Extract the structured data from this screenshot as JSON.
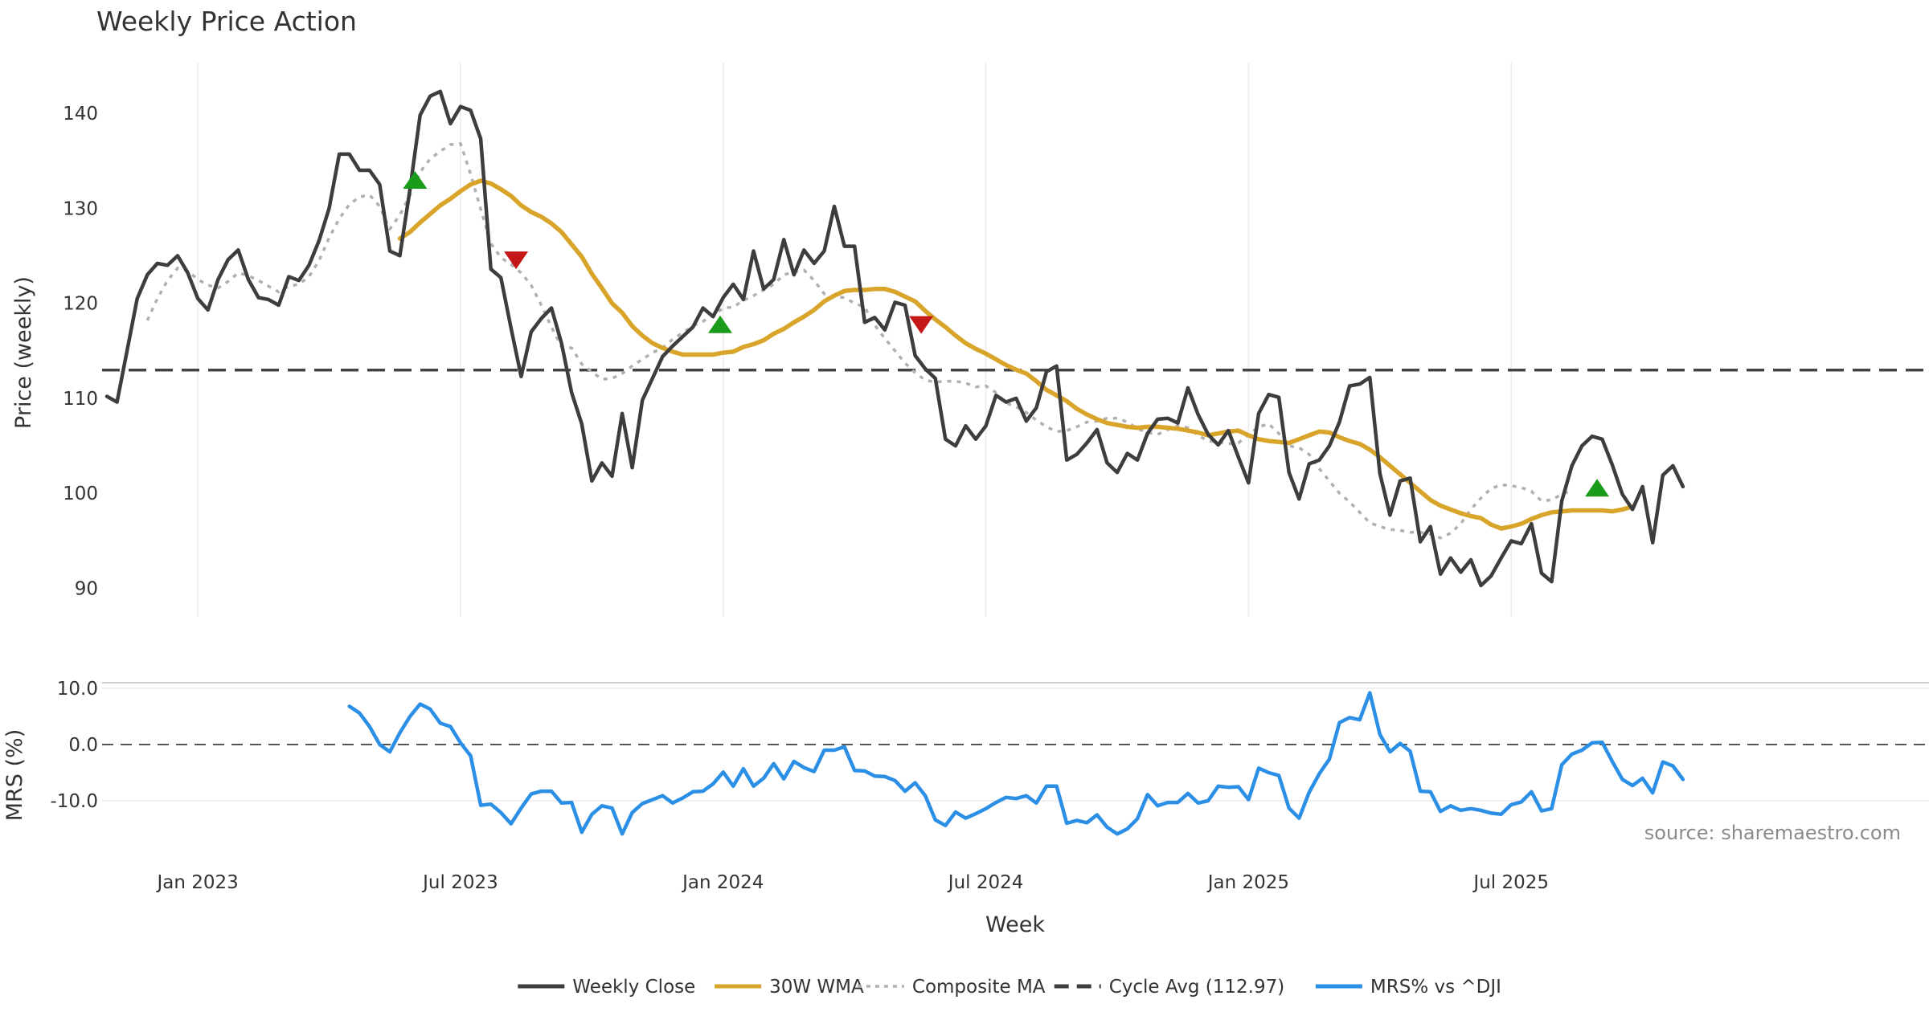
{
  "chart_data": {
    "type": "line",
    "title": "Weekly Price Action",
    "xlabel": "Week",
    "source": "source: sharemaestro.com",
    "x_ticks": [
      "Jan 2023",
      "Jul 2023",
      "Jan 2024",
      "Jul 2024",
      "Jan 2025",
      "Jul 2025"
    ],
    "x_tick_weeks": [
      9,
      35,
      61,
      87,
      113,
      139
    ],
    "price_panel": {
      "ylabel": "Price (weekly)",
      "ylim": [
        87,
        146
      ],
      "y_ticks": [
        90,
        100,
        110,
        120,
        130,
        140
      ],
      "y_tick_labels": [
        "90",
        "100",
        "110",
        "120",
        "130",
        "140"
      ],
      "cycle_avg": 112.97,
      "series": [
        {
          "name": "Weekly Close",
          "color": "#3d3d3d",
          "start_week": 0,
          "values": [
            110.2,
            109.6,
            115.0,
            120.5,
            123.0,
            124.2,
            124.0,
            125.0,
            123.2,
            120.5,
            119.3,
            122.5,
            124.6,
            125.6,
            122.5,
            120.6,
            120.4,
            119.8,
            122.8,
            122.4,
            124.0,
            126.6,
            130.0,
            135.7,
            135.7,
            134.0,
            134.0,
            132.5,
            125.5,
            125.0,
            132.0,
            139.8,
            141.8,
            142.3,
            138.9,
            140.7,
            140.3,
            137.3,
            123.6,
            122.7,
            117.4,
            112.3,
            117.0,
            118.4,
            119.5,
            115.8,
            110.6,
            107.3,
            101.3,
            103.2,
            101.8,
            108.4,
            102.7,
            109.8,
            112.1,
            114.4,
            115.5,
            116.5,
            117.5,
            119.5,
            118.6,
            120.6,
            122.0,
            120.4,
            125.5,
            121.5,
            122.5,
            126.7,
            123.0,
            125.6,
            124.2,
            125.5,
            130.2,
            126.0,
            126.0,
            118.0,
            118.5,
            117.2,
            120.1,
            119.8,
            114.5,
            113.1,
            112.1,
            105.7,
            105.0,
            107.1,
            105.7,
            107.1,
            110.3,
            109.6,
            110.0,
            107.6,
            109.0,
            112.8,
            113.4,
            103.5,
            104.1,
            105.3,
            106.7,
            103.2,
            102.2,
            104.2,
            103.5,
            106.3,
            107.8,
            107.9,
            107.4,
            111.1,
            108.3,
            106.2,
            105.1,
            106.6,
            103.8,
            101.1,
            108.4,
            110.4,
            110.1,
            102.2,
            99.4,
            103.1,
            103.5,
            105.0,
            107.5,
            111.3,
            111.5,
            112.2,
            102.1,
            97.7,
            101.3,
            101.6,
            94.9,
            96.5,
            91.5,
            93.2,
            91.7,
            93.0,
            90.3,
            91.3,
            93.2,
            95.0,
            94.7,
            96.8,
            91.6,
            90.7,
            99.2,
            102.9,
            105.0,
            106.0,
            105.7,
            103.0,
            99.9,
            98.3,
            100.7,
            94.8,
            101.9,
            102.9,
            100.7
          ]
        },
        {
          "name": "30W WMA",
          "color": "#d9a42a",
          "start_week": 29,
          "values": [
            126.8,
            127.5,
            128.5,
            129.4,
            130.3,
            131.0,
            131.8,
            132.5,
            132.9,
            132.6,
            132.0,
            131.3,
            130.3,
            129.6,
            129.1,
            128.4,
            127.5,
            126.2,
            124.9,
            123.1,
            121.6,
            120.0,
            119.0,
            117.6,
            116.6,
            115.8,
            115.3,
            114.9,
            114.6,
            114.6,
            114.6,
            114.6,
            114.8,
            114.9,
            115.4,
            115.7,
            116.1,
            116.8,
            117.3,
            118.0,
            118.6,
            119.3,
            120.2,
            120.8,
            121.3,
            121.4,
            121.4,
            121.5,
            121.5,
            121.2,
            120.7,
            120.2,
            119.2,
            118.3,
            117.5,
            116.6,
            115.8,
            115.2,
            114.7,
            114.1,
            113.5,
            113.0,
            112.6,
            111.8,
            110.9,
            110.3,
            109.7,
            108.9,
            108.3,
            107.8,
            107.4,
            107.2,
            107.0,
            106.9,
            107.0,
            107.0,
            106.9,
            106.8,
            106.6,
            106.4,
            106.1,
            106.3,
            106.5,
            106.6,
            106.1,
            105.7,
            105.5,
            105.4,
            105.3,
            105.7,
            106.1,
            106.5,
            106.4,
            105.9,
            105.5,
            105.2,
            104.6,
            103.8,
            102.9,
            102.0,
            101.1,
            100.2,
            99.3,
            98.7,
            98.3,
            97.9,
            97.6,
            97.4,
            96.7,
            96.3,
            96.5,
            96.8,
            97.3,
            97.7,
            98.0,
            98.1,
            98.2,
            98.2,
            98.2,
            98.2,
            98.1,
            98.3,
            98.6
          ]
        },
        {
          "name": "Composite MA",
          "color": "#b0b0b0",
          "start_week": 4,
          "values": [
            118.2,
            120.5,
            122.4,
            123.7,
            123.4,
            122.5,
            121.9,
            121.6,
            122.3,
            123.2,
            122.9,
            122.4,
            121.8,
            121.2,
            121.8,
            122.0,
            122.8,
            124.5,
            126.9,
            128.9,
            130.4,
            131.2,
            131.4,
            130.2,
            127.8,
            129.3,
            131.4,
            133.8,
            135.2,
            136.0,
            136.7,
            136.8,
            133.6,
            129.9,
            126.3,
            124.8,
            124.1,
            123.2,
            121.9,
            119.8,
            117.5,
            115.4,
            115.3,
            113.6,
            112.8,
            112.0,
            112.1,
            112.6,
            113.4,
            114.1,
            114.8,
            115.3,
            116.2,
            116.9,
            117.6,
            118.1,
            118.7,
            119.5,
            119.6,
            120.3,
            120.8,
            121.4,
            122.0,
            123.0,
            123.3,
            123.5,
            122.4,
            121.0,
            120.7,
            120.6,
            120.0,
            119.6,
            117.7,
            116.3,
            115.0,
            113.7,
            112.7,
            111.9,
            111.7,
            111.8,
            111.8,
            111.6,
            111.2,
            111.3,
            110.6,
            109.5,
            109.1,
            108.5,
            107.7,
            107.0,
            106.5,
            106.6,
            107.0,
            107.5,
            107.6,
            107.9,
            107.9,
            107.5,
            106.8,
            106.4,
            106.2,
            106.7,
            107.1,
            106.9,
            106.1,
            105.5,
            105.4,
            105.2,
            105.3,
            106.2,
            107.0,
            107.3,
            106.3,
            105.0,
            104.8,
            104.1,
            102.6,
            101.3,
            100.0,
            99.1,
            98.0,
            96.9,
            96.5,
            96.2,
            96.1,
            95.9,
            95.9,
            95.7,
            95.3,
            95.8,
            96.8,
            98.3,
            99.5,
            100.5,
            100.9,
            100.8,
            100.6,
            100.2,
            99.2,
            99.3,
            99.9,
            100.3
          ]
        }
      ],
      "buy_signals": [
        {
          "week": 30.5,
          "price": 132.9
        },
        {
          "week": 60.7,
          "price": 117.7
        },
        {
          "week": 147.5,
          "price": 100.5
        }
      ],
      "sell_signals": [
        {
          "week": 40.5,
          "price": 124.6
        },
        {
          "week": 80.6,
          "price": 117.8
        }
      ],
      "buy_color": "#1a9c1a",
      "sell_color": "#c41818"
    },
    "mrs_panel": {
      "ylabel": "MRS (%)",
      "ylim": [
        -19,
        11
      ],
      "y_ticks": [
        -10,
        0,
        10
      ],
      "y_tick_labels": [
        "-10.0",
        "0.0",
        "10.0"
      ],
      "series": [
        {
          "name": "MRS% vs ^DJI",
          "color": "#2b8fe6",
          "start_week": 24,
          "values": [
            6.8,
            5.6,
            3.2,
            0.0,
            -1.3,
            2.1,
            5.0,
            7.2,
            6.3,
            3.8,
            3.2,
            0.3,
            -2.0,
            -10.8,
            -10.6,
            -12.1,
            -14.1,
            -11.3,
            -8.8,
            -8.3,
            -8.3,
            -10.4,
            -10.3,
            -15.6,
            -12.4,
            -10.9,
            -11.3,
            -15.9,
            -12.1,
            -10.5,
            -9.8,
            -9.1,
            -10.4,
            -9.5,
            -8.4,
            -8.3,
            -7.0,
            -4.9,
            -7.4,
            -4.3,
            -7.4,
            -6.0,
            -3.4,
            -6.1,
            -3.0,
            -4.1,
            -4.8,
            -1.0,
            -1.0,
            -0.4,
            -4.6,
            -4.7,
            -5.6,
            -5.7,
            -6.4,
            -8.3,
            -6.8,
            -9.1,
            -13.4,
            -14.4,
            -12.0,
            -13.1,
            -12.3,
            -11.4,
            -10.3,
            -9.4,
            -9.6,
            -9.1,
            -10.4,
            -7.4,
            -7.4,
            -14.0,
            -13.5,
            -13.9,
            -12.5,
            -14.7,
            -15.9,
            -15.0,
            -13.2,
            -8.9,
            -10.9,
            -10.3,
            -10.3,
            -8.7,
            -10.4,
            -10.0,
            -7.4,
            -7.6,
            -7.5,
            -9.8,
            -4.2,
            -5.0,
            -5.5,
            -11.3,
            -13.1,
            -8.5,
            -5.2,
            -2.6,
            3.9,
            4.8,
            4.4,
            9.2,
            1.8,
            -1.3,
            0.2,
            -1.2,
            -8.3,
            -8.4,
            -11.9,
            -10.9,
            -11.7,
            -11.4,
            -11.7,
            -12.2,
            -12.4,
            -10.7,
            -10.2,
            -8.4,
            -11.8,
            -11.4,
            -3.6,
            -1.7,
            -1.0,
            0.3,
            0.4,
            -3.0,
            -6.2,
            -7.3,
            -6.0,
            -8.6,
            -3.1,
            -3.8,
            -6.2
          ]
        }
      ]
    },
    "legend": [
      {
        "label": "Weekly Close",
        "color": "#3d3d3d",
        "style": "solid"
      },
      {
        "label": "30W WMA",
        "color": "#d9a42a",
        "style": "solid"
      },
      {
        "label": "Composite MA",
        "color": "#b0b0b0",
        "style": "dotted"
      },
      {
        "label": "Cycle Avg (112.97)",
        "color": "#3d3d3d",
        "style": "dashed"
      },
      {
        "label": "MRS% vs ^DJI",
        "color": "#2b8fe6",
        "style": "solid"
      }
    ]
  }
}
